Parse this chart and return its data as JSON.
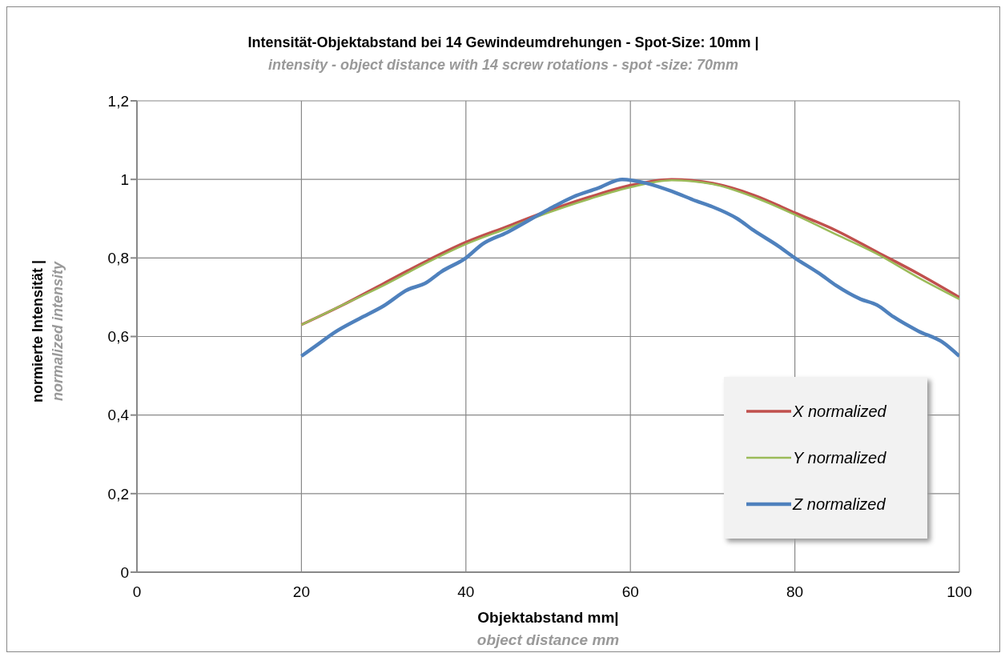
{
  "chart_data": {
    "type": "line",
    "title": "Intensität-Objektabstand bei  14 Gewindeumdrehungen - Spot-Size: 10mm |",
    "subtitle": "intensity - object distance with 14 screw rotations - spot -size: 70mm",
    "xlabel": "Objektabstand mm|",
    "ylabel": "normierte Intensität |",
    "annotations": [
      "object distance mm",
      "normalized intensity"
    ],
    "series": [
      {
        "name": "X normalized",
        "color": "#c0504d",
        "x": [
          20,
          25,
          30,
          35,
          40,
          45,
          50,
          55,
          60,
          65,
          70,
          75,
          80,
          85,
          90,
          95,
          100
        ],
        "values": [
          0.63,
          0.68,
          0.735,
          0.79,
          0.84,
          0.88,
          0.92,
          0.955,
          0.985,
          1.0,
          0.99,
          0.96,
          0.915,
          0.87,
          0.815,
          0.76,
          0.7
        ]
      },
      {
        "name": "Y normalized",
        "color": "#9bbb59",
        "x": [
          20,
          25,
          30,
          35,
          40,
          45,
          50,
          55,
          60,
          65,
          70,
          75,
          80,
          85,
          90,
          95,
          100
        ],
        "values": [
          0.63,
          0.68,
          0.73,
          0.785,
          0.835,
          0.875,
          0.915,
          0.95,
          0.98,
          0.998,
          0.988,
          0.955,
          0.91,
          0.86,
          0.81,
          0.75,
          0.695
        ]
      },
      {
        "name": "Z normalized",
        "color": "#4f81bd",
        "x": [
          20,
          22,
          24,
          27,
          30,
          33,
          35,
          37,
          40,
          42,
          45,
          48,
          50,
          53,
          56,
          59,
          62,
          65,
          68,
          70,
          73,
          75,
          78,
          80,
          83,
          85,
          88,
          90,
          92,
          95,
          98,
          100
        ],
        "values": [
          0.55,
          0.58,
          0.61,
          0.645,
          0.678,
          0.72,
          0.735,
          0.765,
          0.8,
          0.835,
          0.865,
          0.9,
          0.923,
          0.955,
          0.977,
          1.0,
          0.99,
          0.97,
          0.945,
          0.93,
          0.9,
          0.87,
          0.83,
          0.8,
          0.76,
          0.73,
          0.695,
          0.68,
          0.65,
          0.614,
          0.585,
          0.55
        ]
      }
    ],
    "xlim": [
      0,
      100
    ],
    "xticks": [
      0,
      20,
      40,
      60,
      80,
      100
    ],
    "ylim": [
      0,
      1.2
    ],
    "yticks": [
      0,
      {
        "value": 0.2,
        "label": "0,2"
      },
      {
        "value": 0.4,
        "label": "0,4"
      },
      {
        "value": 0.6,
        "label": "0,6"
      },
      {
        "value": 0.8,
        "label": "0,8"
      },
      1,
      {
        "value": 1.2,
        "label": "1,2"
      }
    ],
    "grid": true,
    "legend": "bottom right",
    "marker": "none",
    "line_style": "solid"
  }
}
